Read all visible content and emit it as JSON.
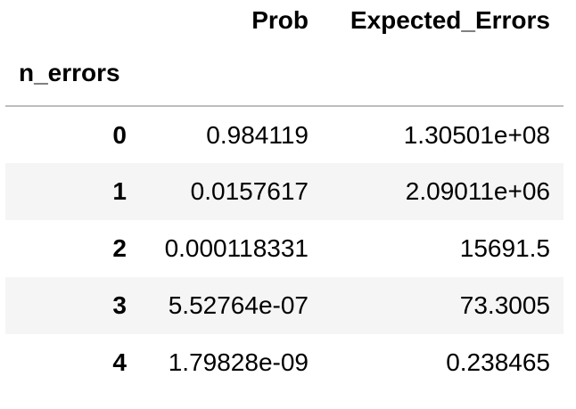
{
  "table": {
    "index_name": "n_errors",
    "columns": [
      "Prob",
      "Expected_Errors"
    ],
    "rows": [
      {
        "index": "0",
        "prob": "0.984119",
        "expected_errors": "1.30501e+08"
      },
      {
        "index": "1",
        "prob": "0.0157617",
        "expected_errors": "2.09011e+06"
      },
      {
        "index": "2",
        "prob": "0.000118331",
        "expected_errors": "15691.5"
      },
      {
        "index": "3",
        "prob": "5.52764e-07",
        "expected_errors": "73.3005"
      },
      {
        "index": "4",
        "prob": "1.79828e-09",
        "expected_errors": "0.238465"
      }
    ]
  },
  "colors": {
    "stripe": "#f5f5f5",
    "header_rule": "#bdbdbd",
    "text": "#000000"
  }
}
